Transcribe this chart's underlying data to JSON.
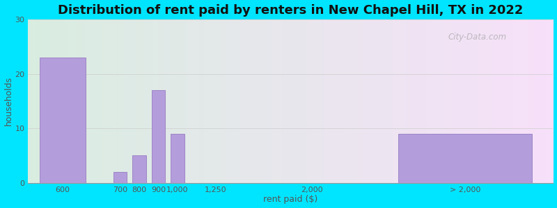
{
  "title": "Distribution of rent paid by renters in New Chapel Hill, TX in 2022",
  "xlabel": "rent paid ($)",
  "ylabel": "households",
  "categories": [
    "600",
    "700",
    "800",
    "900",
    "1,000",
    "1,250",
    "2,000",
    "> 2,000"
  ],
  "values": [
    23,
    2,
    5,
    17,
    9,
    0,
    0,
    9
  ],
  "bar_color": "#b39ddb",
  "bar_edge_color": "#9e86c8",
  "ylim": [
    0,
    30
  ],
  "yticks": [
    0,
    10,
    20,
    30
  ],
  "bg_color_topleft": "#d4edda",
  "bg_color_topright": "#e8f4f8",
  "bg_color_bottomright": "#dce8f5",
  "figure_bg": "#00e5ff",
  "title_fontsize": 13,
  "axis_label_fontsize": 9,
  "tick_fontsize": 8,
  "watermark": "City-Data.com"
}
